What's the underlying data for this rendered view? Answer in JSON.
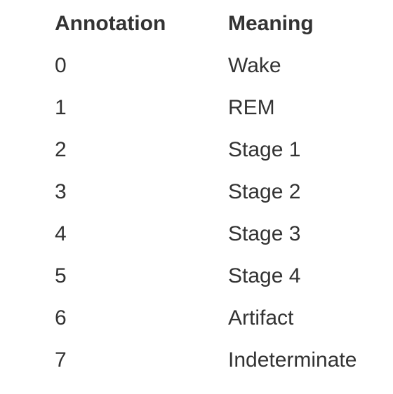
{
  "table": {
    "headers": {
      "annotation": "Annotation",
      "meaning": "Meaning"
    },
    "rows": [
      {
        "annotation": "0",
        "meaning": "Wake"
      },
      {
        "annotation": "1",
        "meaning": "REM"
      },
      {
        "annotation": "2",
        "meaning": "Stage 1"
      },
      {
        "annotation": "3",
        "meaning": "Stage 2"
      },
      {
        "annotation": "4",
        "meaning": "Stage 3"
      },
      {
        "annotation": "5",
        "meaning": "Stage 4"
      },
      {
        "annotation": "6",
        "meaning": "Artifact"
      },
      {
        "annotation": "7",
        "meaning": "Indeterminate"
      }
    ]
  }
}
